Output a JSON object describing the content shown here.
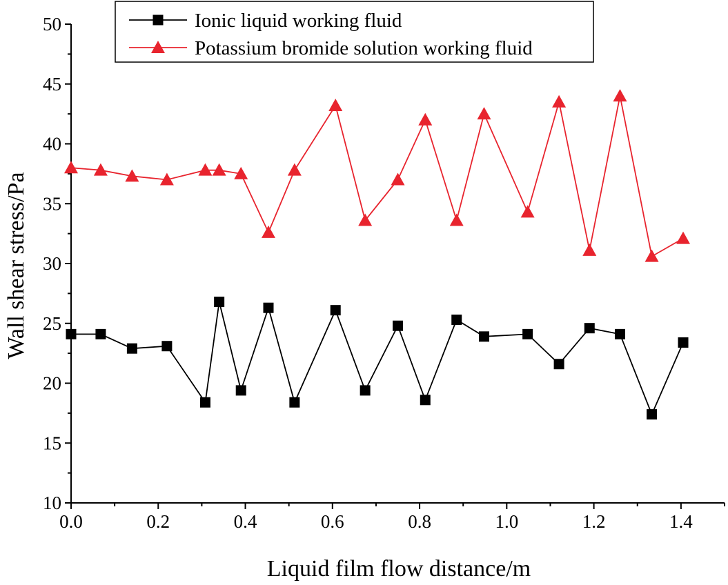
{
  "chart_data": {
    "type": "line",
    "xlabel": "Liquid film flow distance/m",
    "ylabel": "Wall shear stress/Pa",
    "xlim": [
      0.0,
      1.5
    ],
    "ylim": [
      10,
      50
    ],
    "xticks": [
      0.0,
      0.2,
      0.4,
      0.6,
      0.8,
      1.0,
      1.2,
      1.4
    ],
    "xtick_labels": [
      "0.0",
      "0.2",
      "0.4",
      "0.6",
      "0.8",
      "1.0",
      "1.2",
      "1.4"
    ],
    "yticks": [
      10,
      15,
      20,
      25,
      30,
      35,
      40,
      45,
      50
    ],
    "ytick_labels": [
      "10",
      "15",
      "20",
      "25",
      "30",
      "35",
      "40",
      "45",
      "50"
    ],
    "grid": false,
    "legend_position": "top-left",
    "series": [
      {
        "name": "Ionic liquid working fluid",
        "color": "#000000",
        "marker": "square",
        "x": [
          0.0,
          0.068,
          0.14,
          0.22,
          0.308,
          0.34,
          0.39,
          0.453,
          0.513,
          0.607,
          0.675,
          0.75,
          0.813,
          0.885,
          0.948,
          1.048,
          1.12,
          1.19,
          1.26,
          1.333,
          1.405
        ],
        "y": [
          24.1,
          24.1,
          22.9,
          23.1,
          18.4,
          26.8,
          19.4,
          26.3,
          18.4,
          26.1,
          19.4,
          24.8,
          18.6,
          25.3,
          23.9,
          24.1,
          21.6,
          24.6,
          24.1,
          17.4,
          23.4
        ]
      },
      {
        "name": "Potassium bromide solution working fluid",
        "color": "#e8242e",
        "marker": "triangle",
        "x": [
          0.0,
          0.068,
          0.14,
          0.22,
          0.308,
          0.34,
          0.39,
          0.453,
          0.513,
          0.607,
          0.675,
          0.75,
          0.813,
          0.885,
          0.948,
          1.048,
          1.12,
          1.19,
          1.26,
          1.333,
          1.405
        ],
        "y": [
          38.0,
          37.8,
          37.3,
          37.0,
          37.8,
          37.8,
          37.5,
          32.6,
          37.8,
          43.2,
          33.6,
          37.0,
          42.0,
          33.6,
          42.5,
          34.3,
          43.5,
          31.1,
          44.0,
          30.6,
          32.1
        ]
      }
    ]
  }
}
